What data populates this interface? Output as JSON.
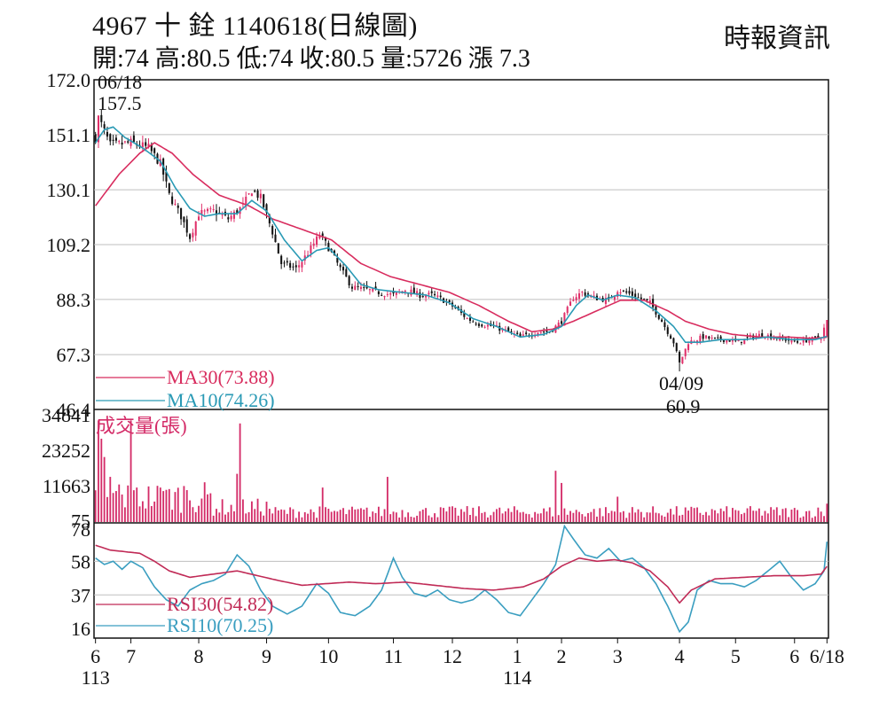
{
  "header": {
    "title": "4967  十    銓 1140618(日線圖)",
    "ohlc": "開:74 高:80.5 低:74 收:80.5 量:5726 漲 7.3",
    "source": "時報資訊"
  },
  "colors": {
    "up": "#e0306a",
    "down": "#111111",
    "ma30": "#d82c5e",
    "ma10": "#2a9ab5",
    "volume": "#d42c68",
    "rsi30": "#c02a56",
    "rsi10": "#3a9ec0",
    "grid": "#bfbfbf",
    "frame": "#111111"
  },
  "chart_data": [
    {
      "type": "candlestick",
      "ylim": [
        46.4,
        172.0
      ],
      "y_ticks": [
        "172.0",
        "151.1",
        "130.1",
        "109.2",
        "88.3",
        "67.3",
        "46.4"
      ],
      "y_tick_values": [
        172.0,
        151.1,
        130.1,
        109.2,
        88.3,
        67.3,
        46.4
      ],
      "x_months": [
        {
          "label": "6",
          "day": 0
        },
        {
          "label": "7",
          "day": 12
        },
        {
          "label": "8",
          "day": 35
        },
        {
          "label": "9",
          "day": 58
        },
        {
          "label": "10",
          "day": 79
        },
        {
          "label": "11",
          "day": 101
        },
        {
          "label": "12",
          "day": 121
        },
        {
          "label": "1",
          "day": 143
        },
        {
          "label": "2",
          "day": 158
        },
        {
          "label": "3",
          "day": 177
        },
        {
          "label": "4",
          "day": 198
        },
        {
          "label": "5",
          "day": 217
        },
        {
          "label": "6",
          "day": 237
        },
        {
          "label": "6/18",
          "day": 248
        }
      ],
      "year_labels": [
        {
          "label": "113",
          "day": 0
        },
        {
          "label": "114",
          "day": 143
        }
      ],
      "days": 249,
      "close_keypoints": [
        [
          0,
          150
        ],
        [
          1,
          157.5
        ],
        [
          5,
          147
        ],
        [
          12,
          148
        ],
        [
          18,
          146
        ],
        [
          22,
          140
        ],
        [
          25,
          128
        ],
        [
          29,
          120
        ],
        [
          32,
          112
        ],
        [
          35,
          121
        ],
        [
          40,
          122
        ],
        [
          45,
          119
        ],
        [
          50,
          124
        ],
        [
          53,
          130
        ],
        [
          56,
          127
        ],
        [
          60,
          114
        ],
        [
          63,
          102
        ],
        [
          68,
          100
        ],
        [
          72,
          106
        ],
        [
          76,
          113
        ],
        [
          79,
          108
        ],
        [
          83,
          100
        ],
        [
          87,
          93
        ],
        [
          92,
          92
        ],
        [
          96,
          91
        ],
        [
          101,
          90
        ],
        [
          105,
          92
        ],
        [
          110,
          90
        ],
        [
          114,
          90
        ],
        [
          118,
          88
        ],
        [
          122,
          85
        ],
        [
          126,
          81
        ],
        [
          130,
          79
        ],
        [
          135,
          78
        ],
        [
          140,
          76
        ],
        [
          144,
          74
        ],
        [
          150,
          76
        ],
        [
          154,
          76
        ],
        [
          158,
          80
        ],
        [
          162,
          89
        ],
        [
          165,
          91
        ],
        [
          169,
          89
        ],
        [
          174,
          88
        ],
        [
          177,
          92
        ],
        [
          182,
          90
        ],
        [
          188,
          87
        ],
        [
          192,
          80
        ],
        [
          196,
          72
        ],
        [
          198,
          64
        ],
        [
          201,
          72
        ],
        [
          206,
          74
        ],
        [
          210,
          73
        ],
        [
          214,
          73
        ],
        [
          218,
          72
        ],
        [
          222,
          74
        ],
        [
          226,
          75
        ],
        [
          230,
          74
        ],
        [
          234,
          73
        ],
        [
          238,
          72
        ],
        [
          242,
          73
        ],
        [
          246,
          74
        ],
        [
          248,
          80.5
        ]
      ],
      "ma30_keypoints": [
        [
          0,
          124
        ],
        [
          8,
          136
        ],
        [
          15,
          144
        ],
        [
          20,
          148
        ],
        [
          26,
          144
        ],
        [
          33,
          136
        ],
        [
          42,
          128
        ],
        [
          52,
          124
        ],
        [
          60,
          119
        ],
        [
          70,
          115
        ],
        [
          80,
          111
        ],
        [
          90,
          102
        ],
        [
          100,
          97
        ],
        [
          110,
          94
        ],
        [
          120,
          91
        ],
        [
          130,
          86
        ],
        [
          140,
          80
        ],
        [
          148,
          76
        ],
        [
          155,
          77
        ],
        [
          162,
          80
        ],
        [
          170,
          84
        ],
        [
          178,
          88
        ],
        [
          186,
          88
        ],
        [
          194,
          84
        ],
        [
          200,
          80
        ],
        [
          208,
          77
        ],
        [
          216,
          75
        ],
        [
          225,
          74
        ],
        [
          235,
          74
        ],
        [
          242,
          73.5
        ],
        [
          248,
          73.88
        ]
      ],
      "ma10_keypoints": [
        [
          0,
          148
        ],
        [
          3,
          153
        ],
        [
          6,
          154
        ],
        [
          10,
          150
        ],
        [
          16,
          146
        ],
        [
          22,
          141
        ],
        [
          27,
          131
        ],
        [
          32,
          123
        ],
        [
          37,
          120
        ],
        [
          42,
          121
        ],
        [
          48,
          121
        ],
        [
          53,
          126
        ],
        [
          58,
          122
        ],
        [
          64,
          111
        ],
        [
          70,
          103
        ],
        [
          75,
          107
        ],
        [
          79,
          108
        ],
        [
          85,
          101
        ],
        [
          90,
          94
        ],
        [
          96,
          92
        ],
        [
          104,
          91
        ],
        [
          112,
          90
        ],
        [
          120,
          87
        ],
        [
          128,
          81
        ],
        [
          136,
          78
        ],
        [
          144,
          74
        ],
        [
          152,
          75
        ],
        [
          158,
          78
        ],
        [
          163,
          86
        ],
        [
          167,
          90
        ],
        [
          172,
          88
        ],
        [
          177,
          90
        ],
        [
          183,
          89
        ],
        [
          190,
          84
        ],
        [
          196,
          78
        ],
        [
          200,
          72
        ],
        [
          205,
          72
        ],
        [
          212,
          73
        ],
        [
          220,
          73
        ],
        [
          228,
          74
        ],
        [
          236,
          73
        ],
        [
          244,
          73
        ],
        [
          248,
          74.26
        ]
      ],
      "annotations": [
        {
          "date": "06/18",
          "value": "157.5",
          "day": 1
        },
        {
          "date": "04/09",
          "value": "60.9",
          "day": 198
        }
      ],
      "legend": [
        {
          "name": "MA30(73.88)",
          "color_key": "ma30"
        },
        {
          "name": "MA10(74.26)",
          "color_key": "ma10"
        }
      ]
    },
    {
      "type": "bar",
      "title": "成交量(張)",
      "ylim": [
        0,
        34841
      ],
      "y_ticks": [
        "34841",
        "23252",
        "11663",
        "75"
      ],
      "y_tick_values": [
        34841,
        23252,
        11663,
        75
      ],
      "volume_spikes": [
        {
          "day": 1,
          "value": 33000
        },
        {
          "day": 2,
          "value": 27000
        },
        {
          "day": 3,
          "value": 21000
        },
        {
          "day": 5,
          "value": 14500
        },
        {
          "day": 8,
          "value": 12000
        },
        {
          "day": 12,
          "value": 33000
        },
        {
          "day": 14,
          "value": 11000
        },
        {
          "day": 22,
          "value": 11000
        },
        {
          "day": 25,
          "value": 10500
        },
        {
          "day": 30,
          "value": 11500
        },
        {
          "day": 48,
          "value": 15500
        },
        {
          "day": 49,
          "value": 32000
        },
        {
          "day": 77,
          "value": 11000
        },
        {
          "day": 99,
          "value": 14500
        },
        {
          "day": 156,
          "value": 16500
        },
        {
          "day": 158,
          "value": 12500
        },
        {
          "day": 177,
          "value": 8000
        },
        {
          "day": 248,
          "value": 5726
        }
      ],
      "volume_base": 3000
    },
    {
      "type": "line",
      "ylim": [
        10,
        82
      ],
      "y_ticks": [
        "78",
        "58",
        "37",
        "16"
      ],
      "y_tick_values": [
        78,
        58,
        37,
        16
      ],
      "rsi30_keypoints": [
        [
          0,
          68
        ],
        [
          5,
          65
        ],
        [
          10,
          64
        ],
        [
          15,
          63
        ],
        [
          20,
          58
        ],
        [
          25,
          52
        ],
        [
          32,
          48
        ],
        [
          40,
          50
        ],
        [
          48,
          52
        ],
        [
          55,
          49
        ],
        [
          62,
          46
        ],
        [
          70,
          43
        ],
        [
          78,
          44
        ],
        [
          86,
          45
        ],
        [
          95,
          44
        ],
        [
          105,
          45
        ],
        [
          115,
          43
        ],
        [
          125,
          41
        ],
        [
          135,
          40
        ],
        [
          145,
          42
        ],
        [
          152,
          47
        ],
        [
          158,
          55
        ],
        [
          164,
          60
        ],
        [
          170,
          58
        ],
        [
          176,
          59
        ],
        [
          182,
          57
        ],
        [
          188,
          52
        ],
        [
          194,
          42
        ],
        [
          198,
          32
        ],
        [
          202,
          40
        ],
        [
          210,
          47
        ],
        [
          220,
          48
        ],
        [
          230,
          49
        ],
        [
          240,
          49
        ],
        [
          246,
          50
        ],
        [
          248,
          54.82
        ]
      ],
      "rsi10_keypoints": [
        [
          0,
          60
        ],
        [
          3,
          56
        ],
        [
          6,
          58
        ],
        [
          9,
          53
        ],
        [
          12,
          58
        ],
        [
          16,
          54
        ],
        [
          20,
          42
        ],
        [
          24,
          34
        ],
        [
          28,
          30
        ],
        [
          32,
          40
        ],
        [
          36,
          44
        ],
        [
          40,
          46
        ],
        [
          44,
          50
        ],
        [
          48,
          62
        ],
        [
          52,
          55
        ],
        [
          56,
          40
        ],
        [
          60,
          30
        ],
        [
          65,
          25
        ],
        [
          70,
          30
        ],
        [
          75,
          44
        ],
        [
          79,
          38
        ],
        [
          83,
          26
        ],
        [
          88,
          24
        ],
        [
          93,
          30
        ],
        [
          97,
          40
        ],
        [
          101,
          60
        ],
        [
          104,
          48
        ],
        [
          108,
          38
        ],
        [
          112,
          36
        ],
        [
          116,
          40
        ],
        [
          120,
          34
        ],
        [
          124,
          32
        ],
        [
          128,
          34
        ],
        [
          132,
          40
        ],
        [
          136,
          34
        ],
        [
          140,
          26
        ],
        [
          144,
          24
        ],
        [
          148,
          34
        ],
        [
          152,
          44
        ],
        [
          156,
          56
        ],
        [
          159,
          80
        ],
        [
          162,
          72
        ],
        [
          166,
          62
        ],
        [
          170,
          60
        ],
        [
          174,
          66
        ],
        [
          178,
          58
        ],
        [
          182,
          60
        ],
        [
          186,
          54
        ],
        [
          190,
          44
        ],
        [
          194,
          30
        ],
        [
          198,
          14
        ],
        [
          201,
          20
        ],
        [
          204,
          40
        ],
        [
          208,
          46
        ],
        [
          212,
          44
        ],
        [
          216,
          44
        ],
        [
          220,
          42
        ],
        [
          224,
          46
        ],
        [
          228,
          52
        ],
        [
          232,
          58
        ],
        [
          236,
          48
        ],
        [
          240,
          40
        ],
        [
          244,
          44
        ],
        [
          247,
          52
        ],
        [
          248,
          70.25
        ]
      ],
      "legend": [
        {
          "name": "RSI30(54.82)",
          "color_key": "rsi30"
        },
        {
          "name": "RSI10(70.25)",
          "color_key": "rsi10"
        }
      ]
    }
  ]
}
